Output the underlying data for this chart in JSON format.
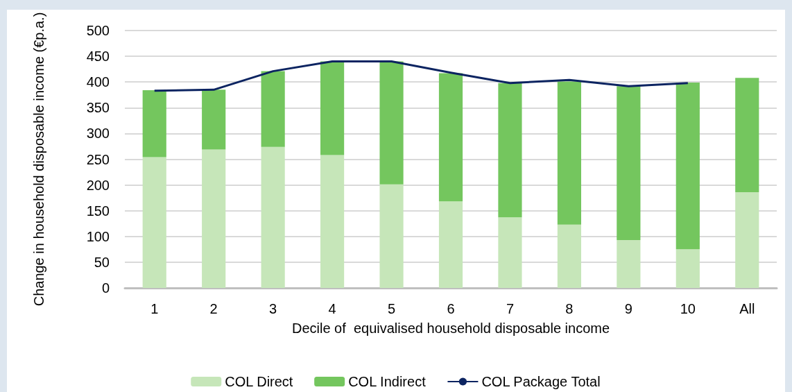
{
  "chart_data": {
    "type": "bar",
    "xlabel": "Decile of  equivalised household disposable income",
    "ylabel": "Change in household disposable income (€p.a.)",
    "categories": [
      "1",
      "2",
      "3",
      "4",
      "5",
      "6",
      "7",
      "8",
      "9",
      "10",
      "All"
    ],
    "stacked": true,
    "series": [
      {
        "name": "COL Direct",
        "color": "#c6e6b9",
        "values": [
          254,
          269,
          274,
          258,
          201,
          168,
          137,
          123,
          93,
          75,
          186
        ]
      },
      {
        "name": "COL Indirect",
        "color": "#74c65e",
        "values": [
          130,
          116,
          147,
          182,
          239,
          249,
          261,
          278,
          299,
          324,
          222
        ]
      },
      {
        "name": "COL Package Total",
        "type": "line",
        "color": "#0c2461",
        "values": [
          383,
          385,
          421,
          440,
          440,
          418,
          398,
          404,
          392,
          398,
          null
        ]
      }
    ],
    "ylim": [
      0,
      500
    ],
    "yticks": [
      0,
      50,
      100,
      150,
      200,
      250,
      300,
      350,
      400,
      450,
      500
    ],
    "grid": "y",
    "legend": "bottom",
    "marker": "none"
  }
}
